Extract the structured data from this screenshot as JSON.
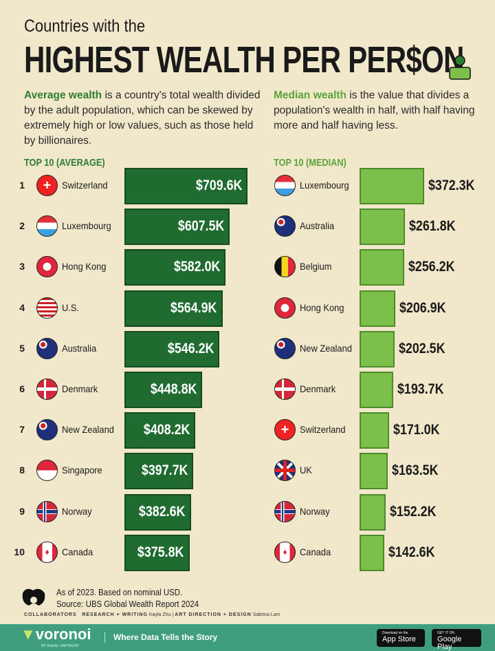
{
  "header": {
    "subtitle": "Countries with the",
    "title": "HIGHEST WEALTH PER PER$ON"
  },
  "desc_left": {
    "highlight": "Average wealth",
    "text": " is a country's total wealth divided by the adult population, which can be skewed by extremely high or low values, such as those held by billionaires."
  },
  "desc_right": {
    "highlight": "Median wealth",
    "text": " is the value that divides a population's wealth in half, with half having more and half having less."
  },
  "colors": {
    "average_bar": "#1f6b30",
    "median_bar": "#7cc04b",
    "background": "#f1e8cc",
    "footer": "#3f9e7d"
  },
  "chart_data": [
    {
      "type": "bar",
      "orientation": "horizontal",
      "title": "TOP 10 (AVERAGE)",
      "unit": "USD thousands",
      "ranks": [
        "1",
        "2",
        "3",
        "4",
        "5",
        "6",
        "7",
        "8",
        "9",
        "10"
      ],
      "categories": [
        "Switzerland",
        "Luxembourg",
        "Hong Kong",
        "U.S.",
        "Australia",
        "Denmark",
        "New Zealand",
        "Singapore",
        "Norway",
        "Canada"
      ],
      "values": [
        709.6,
        607.5,
        582.0,
        564.9,
        546.2,
        448.8,
        408.2,
        397.7,
        382.6,
        375.8
      ],
      "labels": [
        "$709.6K",
        "$607.5K",
        "$582.0K",
        "$564.9K",
        "$546.2K",
        "$448.8K",
        "$408.2K",
        "$397.7K",
        "$382.6K",
        "$375.8K"
      ]
    },
    {
      "type": "bar",
      "orientation": "horizontal",
      "title": "TOP 10 (MEDIAN)",
      "unit": "USD thousands",
      "categories": [
        "Luxembourg",
        "Australia",
        "Belgium",
        "Hong Kong",
        "New Zealand",
        "Denmark",
        "Switzerland",
        "UK",
        "Norway",
        "Canada"
      ],
      "values": [
        372.3,
        261.8,
        256.2,
        206.9,
        202.5,
        193.7,
        171.0,
        163.5,
        152.2,
        142.6
      ],
      "labels": [
        "$372.3K",
        "$261.8K",
        "$256.2K",
        "$206.9K",
        "$202.5K",
        "$193.7K",
        "$171.0K",
        "$163.5K",
        "$152.2K",
        "$142.6K"
      ]
    }
  ],
  "footnote": {
    "line1": "As of 2023. Based on nominal USD.",
    "line2": "Source: UBS Global Wealth Report 2024"
  },
  "collaborators": {
    "label": "COLLABORATORS",
    "research_label": "RESEARCH + WRITING",
    "research_name": "Kayla Zhu",
    "art_label": "ART DIRECTION + DESIGN",
    "art_name": "Sabrina Lam"
  },
  "footer": {
    "brand": "voronoi",
    "brand_sub": "BY VISUAL CAPITALIST",
    "tagline": "Where Data Tells the Story",
    "app_store_small": "Download on the",
    "app_store": "App Store",
    "google_small": "GET IT ON",
    "google": "Google Play"
  }
}
